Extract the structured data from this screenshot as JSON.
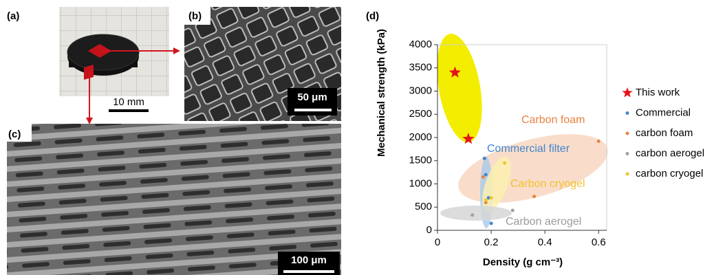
{
  "panels": {
    "a": {
      "label": "(a)",
      "scale": "10 mm"
    },
    "b": {
      "label": "(b)",
      "scale": "50 μm"
    },
    "c": {
      "label": "(c)",
      "scale": "100 μm"
    },
    "d": {
      "label": "(d)"
    }
  },
  "chart_data": {
    "type": "scatter",
    "xlabel": "Density (g cm⁻³)",
    "ylabel": "Mechanical strength (kPa)",
    "xlim": [
      0,
      0.63
    ],
    "ylim": [
      0,
      4000
    ],
    "xticks": [
      0,
      0.2,
      0.4,
      0.6
    ],
    "yticks": [
      0,
      500,
      1000,
      1500,
      2000,
      2500,
      3000,
      3500,
      4000
    ],
    "legend": "right",
    "annotations": [
      {
        "text": "Carbon foam",
        "color": "#e8823f"
      },
      {
        "text": "Commercial filter",
        "color": "#3f86cf"
      },
      {
        "text": "Carbon cryogel",
        "color": "#f2c12e"
      },
      {
        "text": "Carbon aerogel",
        "color": "#9a9a9a"
      }
    ],
    "series": [
      {
        "name": "This work",
        "color": "#e3141b",
        "marker": "star",
        "x": [
          0.065,
          0.115
        ],
        "values": [
          3400,
          1970
        ]
      },
      {
        "name": "Commercial",
        "color": "#3f86cf",
        "marker": "circle",
        "x": [
          0.175,
          0.18,
          0.19,
          0.2
        ],
        "values": [
          1550,
          1200,
          700,
          150
        ]
      },
      {
        "name": "carbon foam",
        "color": "#e8823f",
        "marker": "circle",
        "x": [
          0.6,
          0.36,
          0.17,
          0.18
        ],
        "values": [
          1920,
          730,
          1150,
          600
        ]
      },
      {
        "name": "carbon aerogel",
        "color": "#a0a0a0",
        "marker": "circle",
        "x": [
          0.13,
          0.28
        ],
        "values": [
          330,
          430
        ]
      },
      {
        "name": "carbon cryogel",
        "color": "#f2c12e",
        "marker": "circle",
        "x": [
          0.25,
          0.2,
          0.18
        ],
        "values": [
          1450,
          700,
          650
        ]
      }
    ]
  }
}
